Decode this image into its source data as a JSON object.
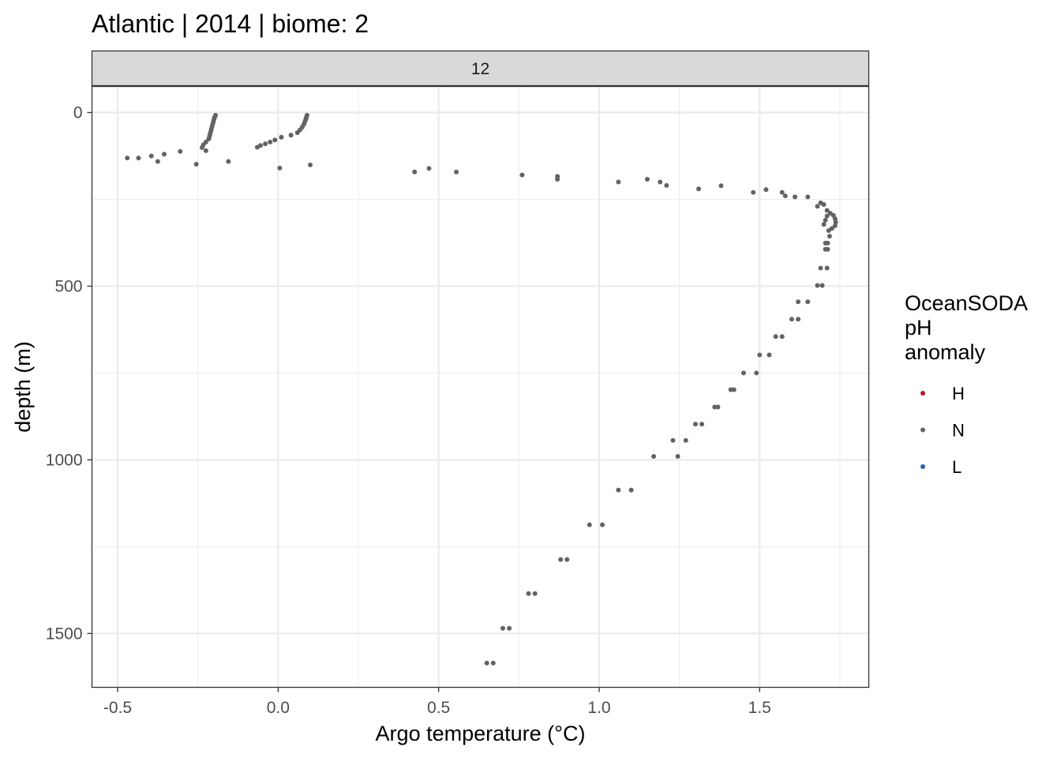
{
  "chart_data": {
    "type": "scatter",
    "title": "Atlantic | 2014 | biome: 2",
    "facet_label": "12",
    "xlabel": "Argo temperature (°C)",
    "ylabel": "depth (m)",
    "xlim": [
      -0.58,
      1.84
    ],
    "ylim": [
      1655,
      -75
    ],
    "y_reversed": true,
    "x_ticks": [
      -0.5,
      0.0,
      0.5,
      1.0,
      1.5
    ],
    "x_tick_labels": [
      "-0.5",
      "0.0",
      "0.5",
      "1.0",
      "1.5"
    ],
    "y_ticks": [
      0,
      500,
      1000,
      1500
    ],
    "y_tick_labels": [
      "0",
      "500",
      "1000",
      "1500"
    ],
    "grid": true,
    "legend": {
      "title": "OceanSODA\npH\nanomaly",
      "position": "right",
      "entries": [
        {
          "label": "H",
          "color": "#B2182B"
        },
        {
          "label": "N",
          "color": "#636363"
        },
        {
          "label": "L",
          "color": "#2166AC"
        }
      ]
    },
    "series": [
      {
        "name": "N",
        "color": "#636363",
        "points": [
          [
            -0.195,
            8
          ],
          [
            -0.198,
            14
          ],
          [
            -0.2,
            20
          ],
          [
            -0.202,
            27
          ],
          [
            -0.204,
            34
          ],
          [
            -0.206,
            41
          ],
          [
            -0.208,
            48
          ],
          [
            -0.21,
            55
          ],
          [
            -0.212,
            62
          ],
          [
            -0.214,
            69
          ],
          [
            -0.216,
            76
          ],
          [
            -0.225,
            85
          ],
          [
            -0.233,
            93
          ],
          [
            -0.237,
            101
          ],
          [
            -0.225,
            110
          ],
          [
            -0.305,
            112
          ],
          [
            -0.355,
            120
          ],
          [
            -0.395,
            125
          ],
          [
            -0.435,
            131
          ],
          [
            -0.47,
            131
          ],
          [
            -0.375,
            141
          ],
          [
            -0.255,
            149
          ],
          [
            -0.155,
            141
          ],
          [
            0.09,
            8
          ],
          [
            0.088,
            14
          ],
          [
            0.086,
            20
          ],
          [
            0.083,
            27
          ],
          [
            0.08,
            34
          ],
          [
            0.075,
            42
          ],
          [
            0.068,
            50
          ],
          [
            0.06,
            58
          ],
          [
            0.04,
            65
          ],
          [
            0.01,
            71
          ],
          [
            -0.01,
            79
          ],
          [
            -0.025,
            85
          ],
          [
            -0.04,
            90
          ],
          [
            -0.055,
            95
          ],
          [
            -0.065,
            100
          ],
          [
            0.005,
            160
          ],
          [
            0.1,
            151
          ],
          [
            0.425,
            171
          ],
          [
            0.47,
            161
          ],
          [
            0.555,
            171
          ],
          [
            0.76,
            180
          ],
          [
            0.87,
            184
          ],
          [
            0.87,
            192
          ],
          [
            1.06,
            200
          ],
          [
            1.15,
            192
          ],
          [
            1.19,
            200
          ],
          [
            1.21,
            210
          ],
          [
            1.31,
            220
          ],
          [
            1.38,
            211
          ],
          [
            1.48,
            230
          ],
          [
            1.52,
            222
          ],
          [
            1.57,
            230
          ],
          [
            1.58,
            240
          ],
          [
            1.61,
            243
          ],
          [
            1.65,
            243
          ],
          [
            1.69,
            260
          ],
          [
            1.7,
            265
          ],
          [
            1.68,
            270
          ],
          [
            1.71,
            282
          ],
          [
            1.72,
            290
          ],
          [
            1.73,
            296
          ],
          [
            1.735,
            306
          ],
          [
            1.737,
            316
          ],
          [
            1.735,
            326
          ],
          [
            1.725,
            334
          ],
          [
            1.7,
            322
          ],
          [
            1.705,
            310
          ],
          [
            1.71,
            298
          ],
          [
            1.715,
            340
          ],
          [
            1.718,
            356
          ],
          [
            1.712,
            376
          ],
          [
            1.705,
            376
          ],
          [
            1.712,
            394
          ],
          [
            1.705,
            394
          ],
          [
            1.69,
            448
          ],
          [
            1.71,
            448
          ],
          [
            1.68,
            498
          ],
          [
            1.695,
            498
          ],
          [
            1.62,
            545
          ],
          [
            1.65,
            545
          ],
          [
            1.6,
            595
          ],
          [
            1.62,
            595
          ],
          [
            1.55,
            645
          ],
          [
            1.57,
            645
          ],
          [
            1.5,
            698
          ],
          [
            1.53,
            698
          ],
          [
            1.45,
            750
          ],
          [
            1.49,
            750
          ],
          [
            1.41,
            798
          ],
          [
            1.42,
            798
          ],
          [
            1.36,
            848
          ],
          [
            1.37,
            848
          ],
          [
            1.3,
            897
          ],
          [
            1.32,
            897
          ],
          [
            1.23,
            944
          ],
          [
            1.27,
            944
          ],
          [
            1.17,
            990
          ],
          [
            1.245,
            990
          ],
          [
            1.06,
            1087
          ],
          [
            1.1,
            1087
          ],
          [
            0.97,
            1187
          ],
          [
            1.01,
            1187
          ],
          [
            0.88,
            1287
          ],
          [
            0.9,
            1287
          ],
          [
            0.78,
            1385
          ],
          [
            0.8,
            1385
          ],
          [
            0.7,
            1485
          ],
          [
            0.72,
            1485
          ],
          [
            0.65,
            1585
          ],
          [
            0.67,
            1585
          ]
        ]
      },
      {
        "name": "H",
        "color": "#B2182B",
        "points": []
      },
      {
        "name": "L",
        "color": "#2166AC",
        "points": []
      }
    ]
  }
}
